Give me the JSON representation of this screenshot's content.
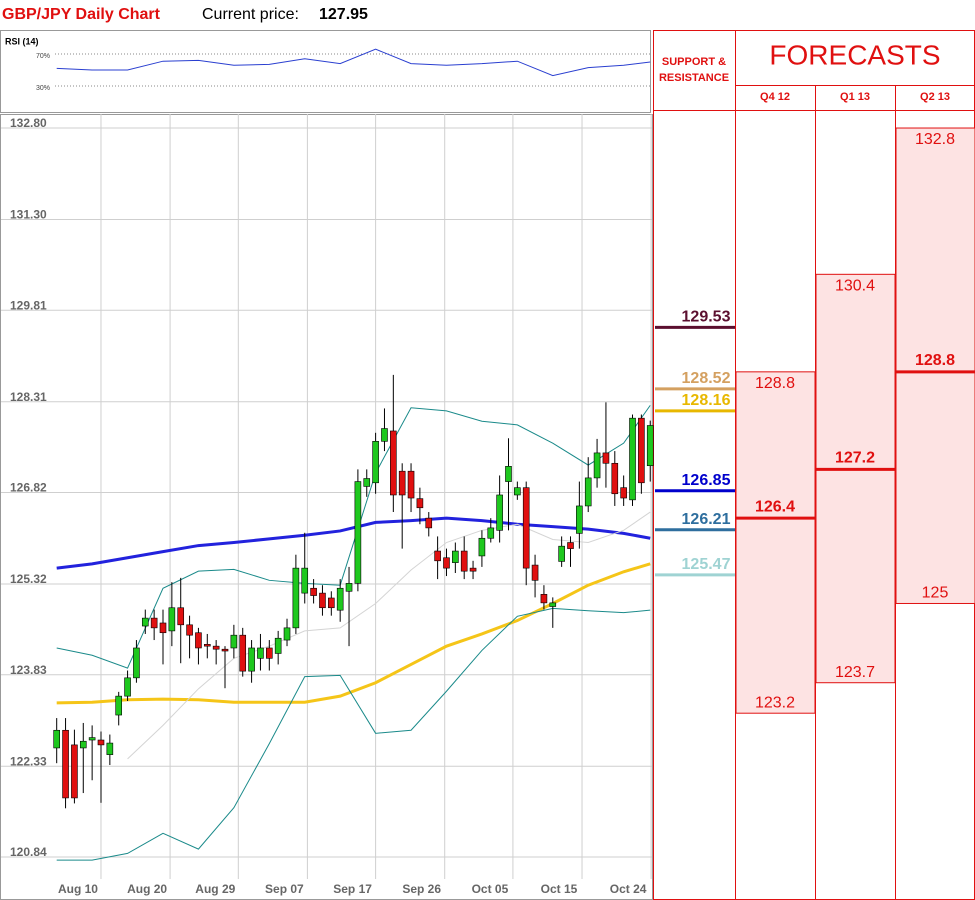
{
  "chart_data": [
    {
      "type": "candlestick",
      "title": "GBP/JPY Daily Chart",
      "price_label": "Current price:",
      "current_price": 127.95,
      "up_color": "#1ec81e",
      "down_color": "#e01010",
      "open": [
        122.63,
        122.92,
        122.68,
        122.63,
        122.76,
        122.76,
        122.52,
        123.17,
        123.48,
        123.78,
        124.63,
        124.76,
        124.68,
        124.55,
        124.93,
        124.65,
        124.52,
        124.33,
        124.3,
        124.25,
        124.27,
        124.48,
        123.89,
        124.1,
        124.27,
        124.18,
        124.4,
        124.6,
        125.17,
        125.25,
        125.17,
        125.09,
        124.89,
        125.2,
        125.33,
        126.92,
        126.98,
        127.66,
        127.83,
        127.17,
        127.17,
        126.72,
        126.4,
        125.86,
        125.75,
        125.67,
        125.86,
        125.58,
        125.78,
        126.07,
        126.2,
        127.0,
        126.78,
        126.9,
        125.63,
        125.15,
        124.95,
        125.69,
        126.0,
        126.15,
        126.6,
        127.06,
        127.47,
        127.3,
        126.9,
        126.7,
        128.04,
        127.26
      ],
      "high": [
        123.12,
        123.12,
        122.93,
        123.04,
        123.0,
        122.9,
        122.85,
        123.55,
        123.9,
        124.4,
        124.9,
        124.9,
        124.9,
        125.35,
        125.42,
        124.8,
        124.6,
        124.5,
        124.4,
        124.3,
        124.65,
        124.6,
        124.4,
        124.5,
        124.4,
        124.55,
        124.75,
        125.8,
        126.16,
        125.4,
        125.3,
        125.2,
        125.4,
        125.6,
        127.2,
        127.2,
        127.8,
        128.2,
        128.75,
        127.3,
        127.3,
        126.9,
        126.5,
        126.1,
        125.9,
        126.0,
        126.1,
        125.7,
        126.2,
        126.4,
        127.1,
        127.71,
        127.0,
        127.0,
        125.8,
        125.3,
        125.1,
        126.1,
        126.1,
        127.0,
        127.4,
        127.7,
        128.3,
        127.5,
        127.1,
        128.1,
        128.1,
        128.0
      ],
      "low": [
        122.38,
        121.64,
        121.72,
        121.89,
        122.1,
        121.73,
        122.35,
        123.0,
        123.4,
        123.7,
        124.5,
        124.4,
        124.0,
        124.3,
        124.02,
        124.1,
        124.0,
        124.1,
        124.0,
        123.61,
        124.1,
        123.8,
        123.7,
        123.9,
        123.9,
        124.0,
        124.3,
        124.5,
        125.0,
        125.0,
        124.8,
        124.8,
        124.7,
        124.3,
        125.2,
        126.75,
        126.8,
        127.5,
        126.5,
        125.9,
        126.5,
        126.3,
        126.1,
        125.4,
        125.45,
        125.5,
        125.4,
        125.4,
        125.6,
        126.0,
        126.0,
        126.2,
        126.7,
        125.3,
        125.1,
        124.9,
        124.6,
        125.6,
        125.6,
        125.9,
        126.5,
        126.9,
        126.9,
        126.6,
        126.6,
        126.6,
        126.8,
        127.0
      ],
      "close": [
        122.92,
        121.81,
        121.81,
        122.74,
        122.8,
        122.68,
        122.71,
        123.48,
        123.78,
        124.27,
        124.76,
        124.6,
        124.52,
        124.93,
        124.65,
        124.48,
        124.27,
        124.3,
        124.25,
        124.22,
        124.48,
        123.89,
        124.27,
        124.27,
        124.1,
        124.43,
        124.6,
        125.58,
        125.58,
        125.13,
        124.93,
        124.93,
        125.25,
        125.33,
        127.0,
        127.05,
        127.66,
        127.87,
        126.78,
        126.78,
        126.73,
        126.57,
        126.24,
        125.7,
        125.58,
        125.86,
        125.53,
        125.53,
        126.07,
        126.24,
        126.78,
        127.25,
        126.9,
        125.58,
        125.38,
        125.01,
        125.01,
        125.94,
        125.9,
        126.6,
        127.06,
        127.47,
        127.3,
        126.8,
        126.73,
        128.04,
        126.98,
        127.92
      ],
      "xlim": [
        -6.4,
        67.2
      ],
      "xticks": [
        {
          "value": 5,
          "label": "Aug 10"
        },
        {
          "value": 12.8,
          "label": "Aug 20"
        },
        {
          "value": 20.5,
          "label": "Aug 29"
        },
        {
          "value": 28.3,
          "label": "Sep 07"
        },
        {
          "value": 36,
          "label": "Sep 17"
        },
        {
          "value": 43.8,
          "label": "Sep 26"
        },
        {
          "value": 51.5,
          "label": "Oct 05"
        },
        {
          "value": 59.3,
          "label": "Oct 15"
        },
        {
          "value": 67.1,
          "label": "Oct 24"
        }
      ],
      "ylim": [
        120.48,
        133.03
      ],
      "yticks": [
        {
          "value": 132.8,
          "label": "132.80"
        },
        {
          "value": 131.3,
          "label": "131.30"
        },
        129.81,
        128.31,
        126.82,
        125.32,
        123.83,
        122.33,
        120.84
      ],
      "grid": true,
      "overlays": [
        {
          "color": "#2222dd",
          "x": [
            0,
            4,
            8,
            12,
            16,
            20,
            24,
            28,
            32,
            36,
            40,
            44,
            48,
            52,
            56,
            60,
            64,
            67
          ],
          "values": [
            125.58,
            125.65,
            125.75,
            125.85,
            125.95,
            126.0,
            126.06,
            126.12,
            126.19,
            126.33,
            126.36,
            126.4,
            126.36,
            126.3,
            126.26,
            126.22,
            126.15,
            126.07
          ]
        },
        {
          "color": "#f5c518",
          "x": [
            0,
            4,
            8,
            12,
            16,
            20,
            24,
            28,
            32,
            36,
            40,
            44,
            48,
            52,
            56,
            60,
            64,
            67
          ],
          "values": [
            123.37,
            123.38,
            123.42,
            123.43,
            123.42,
            123.38,
            123.38,
            123.38,
            123.48,
            123.7,
            124.0,
            124.3,
            124.5,
            124.72,
            125.0,
            125.3,
            125.52,
            125.65
          ]
        },
        {
          "color": "#1a8a8a",
          "x": [
            0,
            4,
            8,
            12,
            16,
            20,
            24,
            28,
            32,
            36,
            40,
            44,
            48,
            52,
            56,
            60,
            64,
            67
          ],
          "values": [
            124.27,
            124.15,
            123.94,
            125.25,
            125.53,
            125.56,
            125.38,
            125.33,
            125.3,
            127.14,
            128.21,
            128.16,
            127.99,
            127.93,
            127.63,
            127.27,
            127.63,
            128.25
          ]
        },
        {
          "color": "#1a8a8a",
          "x": [
            0,
            4,
            8,
            12,
            16,
            20,
            24,
            28,
            32,
            36,
            40,
            44,
            48,
            52,
            56,
            60,
            64,
            67
          ],
          "values": [
            120.79,
            120.79,
            120.9,
            121.23,
            120.97,
            121.65,
            122.7,
            123.8,
            123.82,
            122.87,
            122.92,
            123.56,
            124.23,
            124.79,
            124.92,
            124.88,
            124.85,
            124.89
          ]
        },
        {
          "color": "#d4d4d4",
          "x": [
            8,
            12,
            16,
            20,
            24,
            28,
            32,
            36,
            40,
            44,
            48,
            52,
            56,
            60,
            64,
            67
          ],
          "values": [
            122.45,
            123.0,
            123.6,
            124.1,
            124.3,
            124.55,
            124.6,
            125.0,
            125.55,
            126.0,
            126.2,
            126.3,
            126.05,
            126.0,
            126.2,
            126.5
          ]
        }
      ]
    },
    {
      "type": "line",
      "title": "RSI (14)",
      "color": "#2a3fd0",
      "x": [
        0,
        4,
        8,
        12,
        16,
        20,
        24,
        28,
        32,
        36,
        40,
        44,
        48,
        52,
        56,
        60,
        64,
        67
      ],
      "values": [
        52,
        50,
        50,
        61,
        62,
        56,
        57,
        64,
        58,
        76,
        58,
        56,
        58,
        61,
        43,
        53,
        56,
        60
      ],
      "xlim": [
        -6.4,
        67.2
      ],
      "ylim": [
        0,
        100
      ],
      "yticks": [
        {
          "value": 70,
          "label": "70%"
        },
        {
          "value": 30,
          "label": "30%"
        }
      ]
    },
    {
      "type": "levels",
      "title": "SUPPORT & RESISTANCE",
      "values": [
        129.53,
        128.52,
        128.16,
        126.85,
        126.21,
        125.47
      ],
      "colors": [
        "#5b0f2f",
        "#d4a060",
        "#e8b800",
        "#0000cc",
        "#2e6e9e",
        "#9fd3d3"
      ]
    },
    {
      "type": "forecast",
      "title": "FORECASTS",
      "color": "#e01010",
      "fill": "#fde3e3",
      "categories": [
        "Q4 12",
        "Q1 13",
        "Q2 13"
      ],
      "high": [
        128.8,
        130.4,
        132.8
      ],
      "mid": [
        126.4,
        127.2,
        128.8
      ],
      "low": [
        123.2,
        123.7,
        125
      ]
    }
  ]
}
